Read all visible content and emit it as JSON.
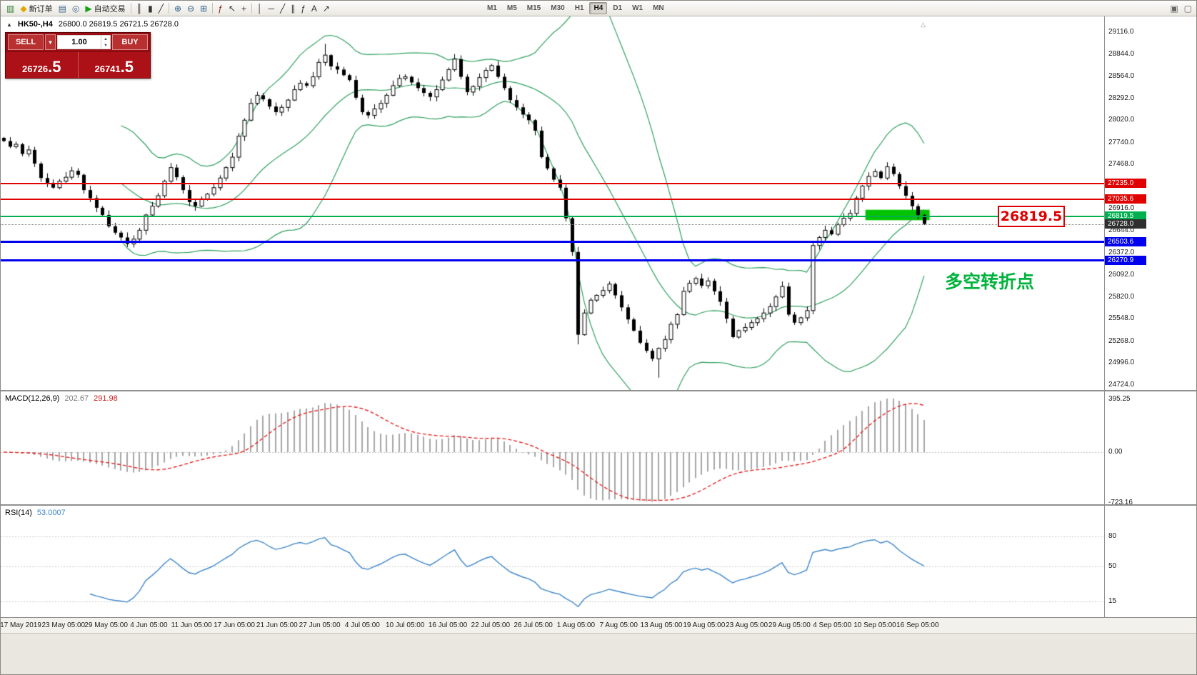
{
  "toolbar": {
    "items": [
      {
        "name": "new-chart-icon",
        "glyph": "▥",
        "color": "#2e7d32"
      },
      {
        "name": "new-order-button",
        "glyph": "◆",
        "color": "#e0a800",
        "label": "新订单"
      },
      {
        "name": "market-watch-icon",
        "glyph": "▤",
        "color": "#456a8c"
      },
      {
        "name": "data-window-icon",
        "glyph": "◎",
        "color": "#456a8c"
      },
      {
        "name": "autotrading-button",
        "glyph": "▶",
        "color": "#15a315",
        "label": "自动交易"
      },
      {
        "sep": true
      },
      {
        "name": "bar-chart-icon",
        "glyph": "║",
        "color": "#333333"
      },
      {
        "name": "candlestick-icon",
        "glyph": "▮",
        "color": "#333333"
      },
      {
        "name": "line-chart-icon",
        "glyph": "╱",
        "color": "#333333"
      },
      {
        "sep": true
      },
      {
        "name": "zoom-in-icon",
        "glyph": "⊕",
        "color": "#2a5c8a"
      },
      {
        "name": "zoom-out-icon",
        "glyph": "⊖",
        "color": "#2a5c8a"
      },
      {
        "name": "tile-windows-icon",
        "glyph": "⊞",
        "color": "#2a5c8a"
      },
      {
        "sep": true
      },
      {
        "name": "indicators-icon",
        "glyph": "ƒ",
        "color": "#8a1a1a"
      },
      {
        "name": "cursor-icon",
        "glyph": "↖",
        "color": "#333333"
      },
      {
        "name": "crosshair-icon",
        "glyph": "+",
        "color": "#333333"
      },
      {
        "sep": true
      },
      {
        "name": "vertical-line-icon",
        "glyph": "│",
        "color": "#333333"
      },
      {
        "name": "horizontal-line-icon",
        "glyph": "─",
        "color": "#333333"
      },
      {
        "name": "trendline-icon",
        "glyph": "╱",
        "color": "#333333"
      },
      {
        "name": "channel-icon",
        "glyph": "∥",
        "color": "#333333"
      },
      {
        "name": "fibonacci-icon",
        "glyph": "ƒ",
        "color": "#333333"
      },
      {
        "name": "text-icon",
        "glyph": "A",
        "color": "#333333"
      },
      {
        "name": "arrows-icon",
        "glyph": "↗",
        "color": "#333333"
      }
    ],
    "timeframes": [
      "M1",
      "M5",
      "M15",
      "M30",
      "H1",
      "H4",
      "D1",
      "W1",
      "MN"
    ],
    "active_timeframe": "H4",
    "right_items": [
      {
        "name": "chart-list-icon",
        "glyph": "▣",
        "color": "#666666"
      },
      {
        "name": "chart-window-icon",
        "glyph": "▢",
        "color": "#666666"
      }
    ]
  },
  "chart": {
    "symbol": "HK50-,H4",
    "ohlc": "26800.0 26819.5 26721.5 26728.0"
  },
  "trade_panel": {
    "sell_label": "SELL",
    "buy_label": "BUY",
    "volume": "1.00",
    "sell_price": {
      "base": "26726",
      "big": ".5"
    },
    "buy_price": {
      "base": "26741",
      "big": ".5"
    }
  },
  "indicator_labels": {
    "macd_name": "MACD(12,26,9)",
    "macd_v1": "202.67",
    "macd_v2": "291.98",
    "rsi_name": "RSI(14)",
    "rsi_value": "53.0007"
  },
  "annotations": {
    "callout_text": "26819.5",
    "callout_price": 26819.5,
    "cn_note": "多空转折点"
  },
  "chart_data": {
    "type": "candlestick",
    "symbol_timeframe": "HK50-,H4",
    "closes": [
      27760,
      27690,
      27720,
      27600,
      27650,
      27480,
      27300,
      27240,
      27180,
      27260,
      27310,
      27390,
      27340,
      27150,
      27050,
      26930,
      26840,
      26700,
      26620,
      26560,
      26480,
      26540,
      26650,
      26840,
      26950,
      27080,
      27260,
      27430,
      27310,
      27150,
      27000,
      26950,
      27040,
      27100,
      27180,
      27300,
      27430,
      27560,
      27820,
      28020,
      28230,
      28330,
      28280,
      28190,
      28120,
      28180,
      28270,
      28400,
      28480,
      28450,
      28560,
      28740,
      28830,
      28690,
      28650,
      28580,
      28520,
      28300,
      28120,
      28080,
      28160,
      28230,
      28330,
      28450,
      28540,
      28560,
      28490,
      28420,
      28360,
      28310,
      28400,
      28520,
      28650,
      28780,
      28560,
      28370,
      28440,
      28550,
      28640,
      28700,
      28560,
      28420,
      28270,
      28180,
      28090,
      28020,
      27890,
      27560,
      27420,
      27280,
      27180,
      26800,
      26380,
      25350,
      25620,
      25780,
      25840,
      25900,
      25980,
      25840,
      25690,
      25540,
      25400,
      25250,
      25150,
      25050,
      25180,
      25290,
      25480,
      25600,
      25890,
      25990,
      26050,
      25960,
      26020,
      25890,
      25760,
      25550,
      25320,
      25400,
      25440,
      25500,
      25550,
      25620,
      25700,
      25820,
      25950,
      25600,
      25500,
      25560,
      25650,
      26460,
      26560,
      26650,
      26600,
      26720,
      26800,
      26860,
      27050,
      27200,
      27320,
      27380,
      27300,
      27440,
      27350,
      27200,
      27080,
      26950,
      26840,
      26728
    ],
    "wick_overrides": {
      "52": {
        "high": 28970
      },
      "93": {
        "low": 25230
      },
      "106": {
        "low": 24815
      }
    },
    "price_axis_range": {
      "top": 29311.6,
      "bottom": 24661.6
    },
    "price_axis_ticks": [
      "29116.0",
      "28844.0",
      "28564.0",
      "28292.0",
      "28020.0",
      "27740.0",
      "27468.0",
      "26916.0",
      "26644.0",
      "26372.0",
      "26092.0",
      "25820.0",
      "25548.0",
      "25268.0",
      "24996.0",
      "24724.0"
    ],
    "levels": [
      {
        "price": 27235.0,
        "label": "27235.0",
        "color": "#e00000",
        "thickness": 2
      },
      {
        "price": 27035.6,
        "label": "27035.6",
        "color": "#e00000",
        "thickness": 2
      },
      {
        "price": 26819.5,
        "label": "26819.5",
        "color": "#00b050",
        "thickness": 2
      },
      {
        "price": 26503.6,
        "label": "26503.6",
        "color": "#0000ee",
        "thickness": 3
      },
      {
        "price": 26270.9,
        "label": "26270.9",
        "color": "#0000ee",
        "thickness": 3
      }
    ],
    "current_price": {
      "value": 26728.0,
      "label": "26728.0",
      "color": "#2f2f2f"
    },
    "bollinger": {
      "period": 20,
      "deviation": 2,
      "color": "#2fa05f"
    },
    "highlight_box": {
      "bar_from": 139.5,
      "bar_to": 149.9,
      "price_top": 26905,
      "price_bottom": 26775,
      "color": "#00c400"
    },
    "macd": {
      "params": "(12,26,9)",
      "axis_labels": [
        "395.25",
        "0.00",
        "-723.16"
      ]
    },
    "rsi": {
      "params": "(14)",
      "axis_labels": [
        "80",
        "50",
        "15"
      ]
    },
    "time_labels": [
      "17 May 2019",
      "23 May 05:00",
      "29 May 05:00",
      "4 Jun 05:00",
      "11 Jun 05:00",
      "17 Jun 05:00",
      "21 Jun 05:00",
      "27 Jun 05:00",
      "4 Jul 05:00",
      "10 Jul 05:00",
      "16 Jul 05:00",
      "22 Jul 05:00",
      "26 Jul 05:00",
      "1 Aug 05:00",
      "7 Aug 05:00",
      "13 Aug 05:00",
      "19 Aug 05:00",
      "23 Aug 05:00",
      "29 Aug 05:00",
      "4 Sep 05:00",
      "10 Sep 05:00",
      "16 Sep 05:00"
    ]
  }
}
